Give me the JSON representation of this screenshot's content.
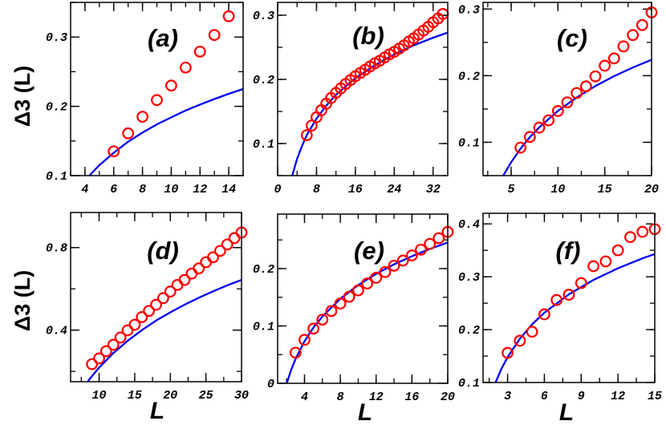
{
  "colors": {
    "markers": "#ff0000",
    "curve": "#0000ee",
    "axes": "#000000"
  },
  "chart_data": [
    {
      "type": "scatter",
      "panel_label": "(a)",
      "ylabel": "Δ3 (L)",
      "xlabel": "",
      "xlim": [
        3,
        15
      ],
      "ylim": [
        0.1,
        0.35
      ],
      "xticks": [
        "4",
        "6",
        "8",
        "10",
        "12",
        "14"
      ],
      "yticks": [
        "0.1",
        "0.2",
        "0.3"
      ],
      "markers": {
        "x": [
          6,
          7,
          8,
          9,
          10,
          11,
          12,
          13,
          14
        ],
        "y": [
          0.135,
          0.161,
          0.185,
          0.209,
          0.23,
          0.256,
          0.279,
          0.303,
          0.33
        ]
      },
      "curve": {
        "x": [
          4.3,
          5,
          6,
          7,
          8,
          9,
          10,
          11,
          12,
          13,
          14,
          15
        ],
        "y": [
          0.1,
          0.115,
          0.133,
          0.149,
          0.162,
          0.174,
          0.184,
          0.194,
          0.2025,
          0.2105,
          0.218,
          0.225
        ]
      }
    },
    {
      "type": "scatter",
      "panel_label": "(b)",
      "ylabel": "",
      "xlabel": "",
      "xlim": [
        0,
        35
      ],
      "ylim": [
        0.05,
        0.32
      ],
      "xticks": [
        "0",
        "8",
        "16",
        "24",
        "32"
      ],
      "yticks": [
        "0.1",
        "0.2",
        "0.3"
      ],
      "markers": {
        "x": [
          6,
          7,
          8,
          9,
          10,
          11,
          12,
          13,
          14,
          15,
          16,
          17,
          18,
          19,
          20,
          21,
          22,
          23,
          24,
          25,
          26,
          27,
          28,
          29,
          30,
          31,
          32,
          33,
          34
        ],
        "y": [
          0.113,
          0.128,
          0.141,
          0.152,
          0.162,
          0.171,
          0.179,
          0.186,
          0.193,
          0.199,
          0.205,
          0.21,
          0.215,
          0.22,
          0.225,
          0.229,
          0.234,
          0.239,
          0.243,
          0.248,
          0.253,
          0.259,
          0.264,
          0.27,
          0.276,
          0.282,
          0.289,
          0.295,
          0.302
        ]
      },
      "curve": {
        "x": [
          3,
          4,
          5,
          6,
          8,
          10,
          12,
          16,
          20,
          24,
          28,
          32,
          35
        ],
        "y": [
          0.05,
          0.076,
          0.096,
          0.113,
          0.139,
          0.159,
          0.176,
          0.202,
          0.222,
          0.239,
          0.253,
          0.265,
          0.273
        ]
      }
    },
    {
      "type": "scatter",
      "panel_label": "(c)",
      "ylabel": "",
      "xlabel": "",
      "xlim": [
        2,
        20
      ],
      "ylim": [
        0.05,
        0.31
      ],
      "xticks": [
        "5",
        "10",
        "15",
        "20"
      ],
      "yticks": [
        "0.1",
        "0.2",
        "0.3"
      ],
      "markers": {
        "x": [
          6,
          7,
          8,
          9,
          10,
          11,
          12,
          13,
          14,
          15,
          16,
          17,
          18,
          19,
          20
        ],
        "y": [
          0.092,
          0.108,
          0.122,
          0.133,
          0.147,
          0.16,
          0.174,
          0.184,
          0.199,
          0.215,
          0.226,
          0.244,
          0.261,
          0.276,
          0.295
        ]
      },
      "curve": {
        "x": [
          4.16,
          5,
          6,
          7,
          8,
          10,
          12,
          14,
          16,
          18,
          20
        ],
        "y": [
          0.05,
          0.07,
          0.0905,
          0.1076,
          0.1224,
          0.1471,
          0.1673,
          0.1844,
          0.1992,
          0.2123,
          0.2239
        ]
      }
    },
    {
      "type": "scatter",
      "panel_label": "(d)",
      "ylabel": "Δ3 (L)",
      "xlabel": "L",
      "xlim": [
        6,
        30
      ],
      "ylim": [
        0.15,
        0.97
      ],
      "xticks": [
        "10",
        "15",
        "20",
        "25",
        "30"
      ],
      "yticks": [
        "0.4",
        "0.8"
      ],
      "markers": {
        "x": [
          9,
          10,
          11,
          12,
          13,
          14,
          15,
          16,
          17,
          18,
          19,
          20,
          21,
          22,
          23,
          24,
          25,
          26,
          27,
          28,
          29,
          30
        ],
        "y": [
          0.235,
          0.263,
          0.298,
          0.329,
          0.364,
          0.399,
          0.426,
          0.463,
          0.493,
          0.523,
          0.555,
          0.587,
          0.619,
          0.643,
          0.674,
          0.699,
          0.729,
          0.753,
          0.784,
          0.815,
          0.846,
          0.873
        ]
      },
      "curve": {
        "x": [
          8.39,
          9,
          10,
          12,
          14,
          16,
          18,
          20,
          22,
          24,
          26,
          28,
          30
        ],
        "y": [
          0.15,
          0.177,
          0.218,
          0.289,
          0.348,
          0.4,
          0.446,
          0.486,
          0.523,
          0.557,
          0.588,
          0.617,
          0.643
        ]
      }
    },
    {
      "type": "scatter",
      "panel_label": "(e)",
      "ylabel": "",
      "xlabel": "L",
      "xlim": [
        1,
        20
      ],
      "ylim": [
        0,
        0.295
      ],
      "xticks": [
        "4",
        "8",
        "12",
        "16",
        "20"
      ],
      "yticks": [
        "0",
        "0.1",
        "0.2"
      ],
      "markers": {
        "x": [
          3,
          4,
          5,
          6,
          7,
          8,
          9,
          10,
          11,
          12,
          13,
          14,
          15,
          16,
          17,
          18,
          19,
          20
        ],
        "y": [
          0.0535,
          0.0758,
          0.0953,
          0.111,
          0.126,
          0.139,
          0.151,
          0.162,
          0.174,
          0.184,
          0.194,
          0.205,
          0.214,
          0.223,
          0.233,
          0.243,
          0.253,
          0.264
        ]
      },
      "curve": {
        "x": [
          2.02,
          2.5,
          3,
          4,
          5,
          6,
          8,
          10,
          12,
          14,
          16,
          18,
          20
        ],
        "y": [
          0,
          0.0228,
          0.0424,
          0.0732,
          0.0971,
          0.1166,
          0.1474,
          0.1713,
          0.1908,
          0.2073,
          0.2216,
          0.2343,
          0.2455
        ]
      }
    },
    {
      "type": "scatter",
      "panel_label": "(f)",
      "ylabel": "",
      "xlabel": "L",
      "xlim": [
        1,
        15
      ],
      "ylim": [
        0.1,
        0.42
      ],
      "xticks": [
        "3",
        "6",
        "9",
        "12",
        "15"
      ],
      "yticks": [
        "0.1",
        "0.2",
        "0.3",
        "0.4"
      ],
      "markers": {
        "x": [
          3,
          4,
          5,
          6,
          7,
          8,
          9,
          10,
          11,
          12,
          13,
          14,
          15
        ],
        "y": [
          0.156,
          0.179,
          0.196,
          0.229,
          0.256,
          0.266,
          0.288,
          0.32,
          0.329,
          0.35,
          0.375,
          0.385,
          0.39
        ]
      },
      "curve": {
        "x": [
          2.02,
          2.5,
          3,
          4,
          5,
          6,
          8,
          10,
          12,
          14,
          15
        ],
        "y": [
          0.1,
          0.1259,
          0.1479,
          0.1828,
          0.2099,
          0.232,
          0.2668,
          0.2939,
          0.316,
          0.3347,
          0.343
        ]
      }
    }
  ]
}
